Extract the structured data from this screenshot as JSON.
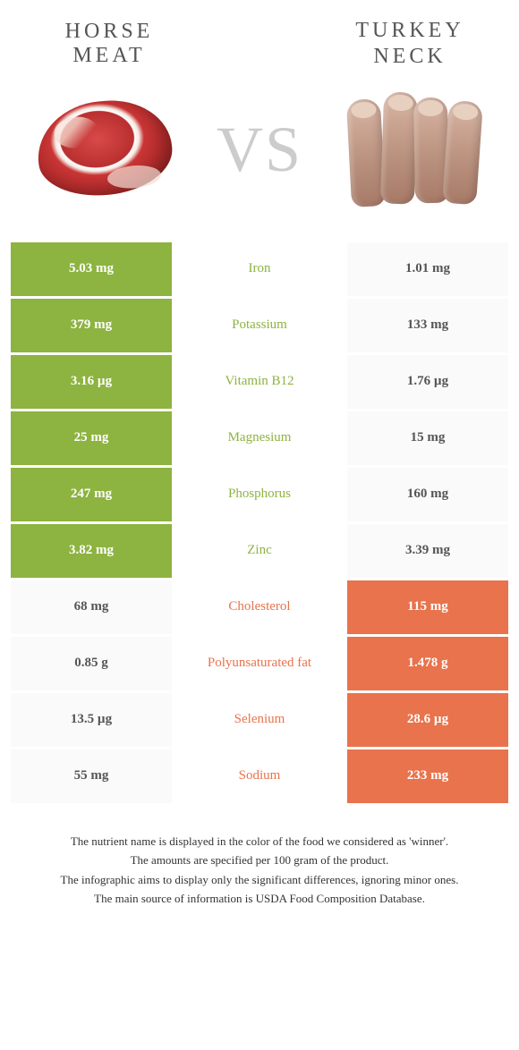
{
  "titles": {
    "left": "Horse meat",
    "right": "Turkey neck",
    "vs": "VS"
  },
  "colors": {
    "left_bg": "#8db340",
    "right_bg": "#e8734c",
    "neutral_bg": "#fafafa",
    "text_white": "#ffffff",
    "text_dark": "#555555"
  },
  "rows": [
    {
      "nutrient": "Iron",
      "left": "5.03 mg",
      "right": "1.01 mg",
      "winner": "left"
    },
    {
      "nutrient": "Potassium",
      "left": "379 mg",
      "right": "133 mg",
      "winner": "left"
    },
    {
      "nutrient": "Vitamin B12",
      "left": "3.16 µg",
      "right": "1.76 µg",
      "winner": "left"
    },
    {
      "nutrient": "Magnesium",
      "left": "25 mg",
      "right": "15 mg",
      "winner": "left"
    },
    {
      "nutrient": "Phosphorus",
      "left": "247 mg",
      "right": "160 mg",
      "winner": "left"
    },
    {
      "nutrient": "Zinc",
      "left": "3.82 mg",
      "right": "3.39 mg",
      "winner": "left"
    },
    {
      "nutrient": "Cholesterol",
      "left": "68 mg",
      "right": "115 mg",
      "winner": "right"
    },
    {
      "nutrient": "Polyunsaturated fat",
      "left": "0.85 g",
      "right": "1.478 g",
      "winner": "right"
    },
    {
      "nutrient": "Selenium",
      "left": "13.5 µg",
      "right": "28.6 µg",
      "winner": "right"
    },
    {
      "nutrient": "Sodium",
      "left": "55 mg",
      "right": "233 mg",
      "winner": "right"
    }
  ],
  "footer": [
    "The nutrient name is displayed in the color of the food we considered as 'winner'.",
    "The amounts are specified per 100 gram of the product.",
    "The infographic aims to display only the significant differences, ignoring minor ones.",
    "The main source of information is USDA Food Composition Database."
  ]
}
